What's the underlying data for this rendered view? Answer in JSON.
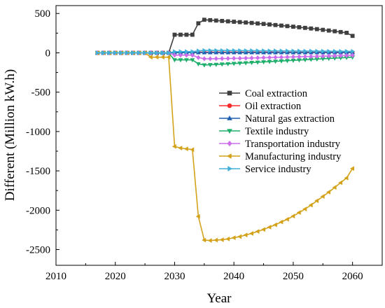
{
  "chart_data": {
    "type": "line",
    "title": "",
    "xlabel": "Year",
    "ylabel": "Different (Million kW.h)",
    "xlim": [
      2010,
      2065
    ],
    "ylim": [
      -2700,
      600
    ],
    "xticks": [
      2010,
      2020,
      2030,
      2040,
      2050,
      2060
    ],
    "yticks": [
      500,
      0,
      -500,
      -1000,
      -1500,
      -2000,
      -2500
    ],
    "xtick_labels": [
      "2010",
      "2020",
      "2030",
      "2040",
      "2050",
      "2060"
    ],
    "ytick_labels": [
      "500",
      "0",
      "-500",
      "-1000",
      "-1500",
      "-2000",
      "-2500"
    ],
    "grid": false,
    "legend_position": "center-right",
    "x": [
      2017,
      2018,
      2019,
      2020,
      2021,
      2022,
      2023,
      2024,
      2025,
      2026,
      2027,
      2028,
      2029,
      2030,
      2031,
      2032,
      2033,
      2034,
      2035,
      2036,
      2037,
      2038,
      2039,
      2040,
      2041,
      2042,
      2043,
      2044,
      2045,
      2046,
      2047,
      2048,
      2049,
      2050,
      2051,
      2052,
      2053,
      2054,
      2055,
      2056,
      2057,
      2058,
      2059,
      2060
    ],
    "series": [
      {
        "name": "Coal extraction",
        "color": "#3f3f3f",
        "marker": "square",
        "values": [
          0,
          0,
          0,
          0,
          0,
          0,
          0,
          0,
          0,
          0,
          0,
          0,
          0,
          230,
          230,
          230,
          230,
          375,
          420,
          415,
          410,
          405,
          400,
          395,
          390,
          385,
          380,
          373,
          367,
          360,
          353,
          346,
          339,
          332,
          325,
          317,
          309,
          301,
          292,
          283,
          274,
          264,
          254,
          215
        ]
      },
      {
        "name": "Oil extraction",
        "color": "#ff2a2a",
        "marker": "circle",
        "values": [
          0,
          0,
          0,
          0,
          0,
          0,
          0,
          0,
          0,
          0,
          0,
          0,
          0,
          5,
          5,
          5,
          5,
          8,
          8,
          8,
          8,
          8,
          8,
          8,
          8,
          8,
          8,
          8,
          8,
          8,
          7,
          7,
          7,
          7,
          7,
          7,
          7,
          7,
          6,
          6,
          6,
          6,
          6,
          6
        ]
      },
      {
        "name": "Natural gas extraction",
        "color": "#1c5fb0",
        "marker": "triangle-up",
        "values": [
          0,
          0,
          0,
          0,
          0,
          0,
          0,
          0,
          0,
          0,
          0,
          0,
          0,
          2,
          2,
          2,
          2,
          3,
          3,
          3,
          3,
          3,
          3,
          3,
          3,
          3,
          3,
          3,
          3,
          3,
          3,
          3,
          3,
          3,
          3,
          3,
          3,
          3,
          3,
          3,
          3,
          3,
          3,
          3
        ]
      },
      {
        "name": "Textile industry",
        "color": "#1fae6b",
        "marker": "triangle-down",
        "values": [
          0,
          0,
          0,
          0,
          0,
          0,
          0,
          0,
          0,
          -5,
          -5,
          -5,
          -5,
          -90,
          -90,
          -90,
          -90,
          -140,
          -155,
          -152,
          -148,
          -144,
          -140,
          -136,
          -132,
          -128,
          -124,
          -120,
          -116,
          -112,
          -108,
          -104,
          -100,
          -96,
          -92,
          -88,
          -84,
          -80,
          -76,
          -72,
          -68,
          -64,
          -60,
          -55
        ]
      },
      {
        "name": "Transportation industry",
        "color": "#cc6eeb",
        "marker": "diamond",
        "values": [
          0,
          0,
          0,
          0,
          0,
          0,
          0,
          0,
          0,
          0,
          0,
          0,
          0,
          -30,
          -30,
          -30,
          -30,
          -60,
          -75,
          -75,
          -74,
          -73,
          -72,
          -71,
          -70,
          -68,
          -66,
          -64,
          -62,
          -60,
          -58,
          -56,
          -54,
          -52,
          -50,
          -48,
          -46,
          -44,
          -42,
          -40,
          -38,
          -36,
          -34,
          -32
        ]
      },
      {
        "name": "Manufacturing industry",
        "color": "#d4a21a",
        "marker": "left-triangle",
        "values": [
          0,
          0,
          0,
          0,
          0,
          0,
          0,
          0,
          0,
          -55,
          -55,
          -55,
          -55,
          -1190,
          -1210,
          -1220,
          -1230,
          -2080,
          -2380,
          -2385,
          -2380,
          -2375,
          -2365,
          -2350,
          -2335,
          -2315,
          -2295,
          -2270,
          -2245,
          -2215,
          -2185,
          -2150,
          -2115,
          -2075,
          -2030,
          -1985,
          -1935,
          -1880,
          -1825,
          -1770,
          -1710,
          -1650,
          -1590,
          -1470
        ]
      },
      {
        "name": "Service industry",
        "color": "#3fb0d9",
        "marker": "right-triangle",
        "values": [
          0,
          0,
          0,
          0,
          0,
          0,
          0,
          0,
          0,
          0,
          0,
          0,
          0,
          15,
          15,
          15,
          15,
          25,
          30,
          30,
          30,
          29,
          29,
          28,
          28,
          27,
          27,
          26,
          26,
          25,
          25,
          24,
          24,
          23,
          23,
          22,
          22,
          21,
          21,
          20,
          20,
          19,
          19,
          18
        ]
      }
    ]
  }
}
